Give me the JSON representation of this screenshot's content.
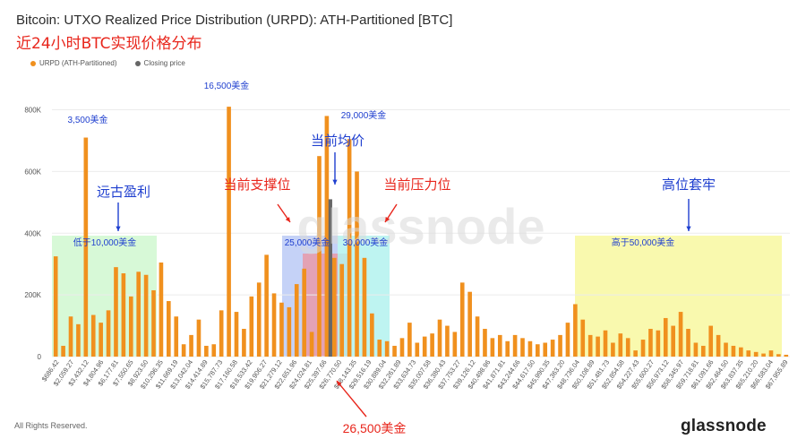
{
  "title": "Bitcoin: UTXO Realized Price Distribution (URPD): ATH-Partitioned [BTC]",
  "subtitle": "近24小时BTC实现价格分布",
  "legend": {
    "series_label": "URPD (ATH-Partitioned)",
    "closing_label": "Closing price"
  },
  "footer": {
    "copyright": "All Rights Reserved.",
    "logo": "glassnode",
    "watermark": "glassnode"
  },
  "colors": {
    "bar": "#f0901e",
    "closing": "#666666",
    "green_zone": "#c9f7c9",
    "blue_zone": "#b7c7f5",
    "pink_zone": "#e89aa8",
    "cyan_zone": "#b3f2ef",
    "yellow_zone": "#f7f79a",
    "annotation_blue": "#1f3fcf",
    "annotation_red": "#e8261c"
  },
  "annotations": {
    "ancient_profit": "远古盈利",
    "below_10000": "低于10,000美金",
    "support": "当前支撑位",
    "resistance": "当前压力位",
    "avg_price": "当前均价",
    "range_25000": "25,000美金",
    "range_30000": "30,000美金",
    "high_trapped": "高位套牢",
    "above_50000": "高于50,000美金",
    "peak_3500": "3,500美金",
    "peak_16500": "16,500美金",
    "peak_29000": "29,000美金",
    "closing_26500": "26,500美金"
  },
  "chart_data": {
    "type": "bar",
    "title": "Bitcoin: UTXO Realized Price Distribution (URPD): ATH-Partitioned [BTC]",
    "ylim": [
      0,
      880000
    ],
    "y_ticks": [
      0,
      200000,
      400000,
      600000,
      800000
    ],
    "y_tick_labels": [
      "0",
      "200K",
      "400K",
      "600K",
      "800K"
    ],
    "x_tick_labels": [
      "$686.42",
      "$2,059.27",
      "$3,432.12",
      "$4,804.96",
      "$6,177.81",
      "$7,550.65",
      "$8,923.50",
      "$10,296.35",
      "$11,669.19",
      "$13,042.04",
      "$14,414.89",
      "$15,787.73",
      "$17,160.58",
      "$18,533.42",
      "$19,906.27",
      "$21,279.12",
      "$22,651.96",
      "$24,024.81",
      "$25,397.66",
      "$26,770.50",
      "$28,143.35",
      "$29,516.19",
      "$30,889.04",
      "$32,261.89",
      "$33,634.73",
      "$35,007.58",
      "$36,380.43",
      "$37,753.27",
      "$39,126.12",
      "$40,498.96",
      "$41,871.81",
      "$43,244.66",
      "$44,617.50",
      "$45,990.35",
      "$47,363.20",
      "$48,736.04",
      "$50,108.89",
      "$51,481.73",
      "$52,854.58",
      "$54,227.43",
      "$55,600.27",
      "$56,973.12",
      "$58,345.97",
      "$59,718.81",
      "$61,091.66",
      "$62,464.50",
      "$63,837.35",
      "$65,210.20",
      "$66,583.04",
      "$67,955.89"
    ],
    "values": [
      325000,
      35000,
      130000,
      105000,
      710000,
      135000,
      110000,
      150000,
      290000,
      270000,
      195000,
      275000,
      265000,
      215000,
      305000,
      180000,
      130000,
      40000,
      70000,
      120000,
      35000,
      40000,
      150000,
      810000,
      145000,
      90000,
      195000,
      240000,
      330000,
      205000,
      175000,
      160000,
      235000,
      285000,
      80000,
      650000,
      780000,
      320000,
      300000,
      705000,
      600000,
      320000,
      140000,
      55000,
      50000,
      35000,
      60000,
      110000,
      45000,
      65000,
      75000,
      120000,
      100000,
      80000,
      240000,
      210000,
      130000,
      90000,
      60000,
      70000,
      50000,
      70000,
      60000,
      50000,
      40000,
      45000,
      55000,
      70000,
      110000,
      170000,
      120000,
      70000,
      65000,
      85000,
      45000,
      75000,
      60000,
      20000,
      55000,
      90000,
      85000,
      125000,
      100000,
      145000,
      90000,
      45000,
      35000,
      100000,
      70000,
      45000,
      35000,
      30000,
      20000,
      15000,
      10000,
      20000,
      8000,
      6000
    ],
    "closing_price_bar_value": 510000,
    "closing_price": "26,500美金"
  }
}
